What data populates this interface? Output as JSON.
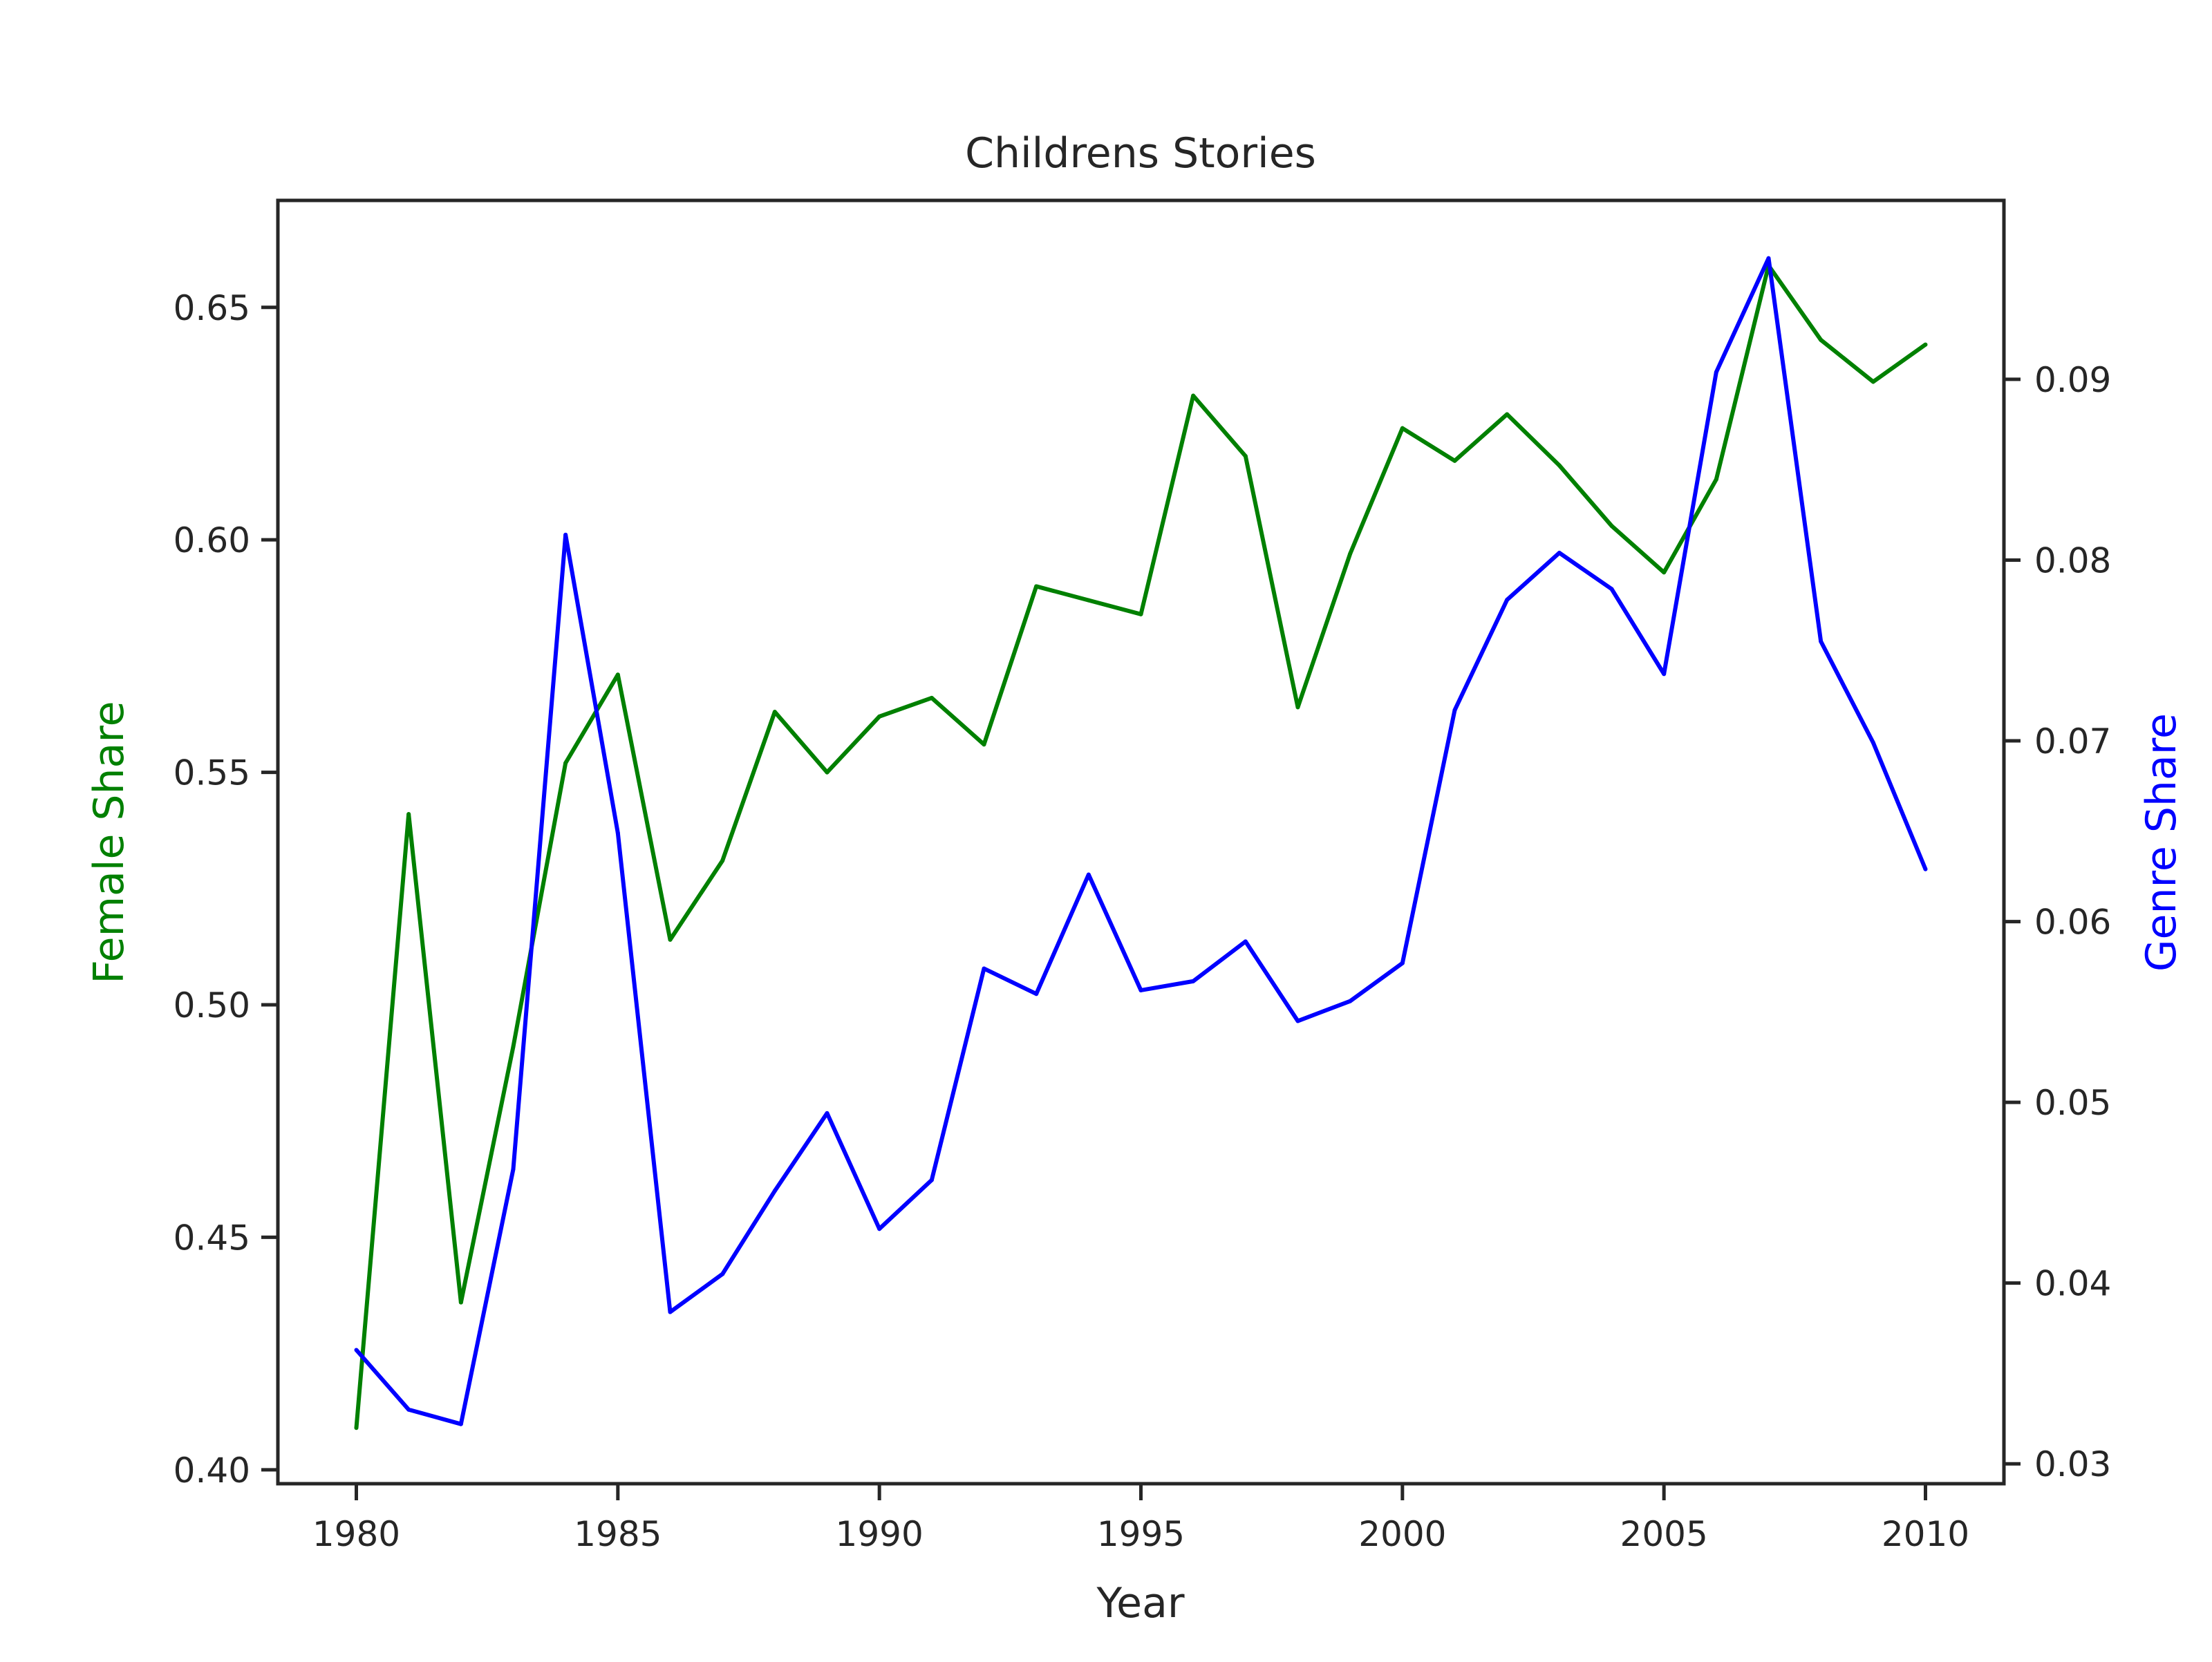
{
  "chart_data": {
    "type": "line",
    "title": "Childrens Stories",
    "xlabel": "Year",
    "ylabel_left": "Female Share",
    "ylabel_right": "Genre Share",
    "x": [
      1980,
      1981,
      1982,
      1983,
      1984,
      1985,
      1986,
      1987,
      1988,
      1989,
      1990,
      1991,
      1992,
      1993,
      1994,
      1995,
      1996,
      1997,
      1998,
      1999,
      2000,
      2001,
      2002,
      2003,
      2004,
      2005,
      2006,
      2007,
      2008,
      2009,
      2010
    ],
    "xlim": [
      1978.5,
      2011.5
    ],
    "xticks": [
      "1980",
      "1985",
      "1990",
      "1995",
      "2000",
      "2005",
      "2010"
    ],
    "left_axis": {
      "ylim": [
        0.397,
        0.673
      ],
      "ticks": [
        "0.40",
        "0.45",
        "0.50",
        "0.55",
        "0.60",
        "0.65"
      ],
      "color": "#008000"
    },
    "right_axis": {
      "ylim": [
        0.0289,
        0.0999
      ],
      "ticks": [
        "0.03",
        "0.04",
        "0.05",
        "0.06",
        "0.07",
        "0.08",
        "0.09"
      ],
      "color": "#0000ff"
    },
    "series": [
      {
        "name": "Female Share",
        "axis": "left",
        "color": "#008000",
        "values": [
          0.409,
          0.541,
          0.436,
          0.491,
          0.552,
          0.571,
          0.514,
          0.531,
          0.563,
          0.55,
          0.562,
          0.566,
          0.556,
          0.59,
          0.587,
          0.584,
          0.631,
          0.618,
          0.564,
          0.597,
          0.624,
          0.617,
          0.627,
          0.616,
          0.603,
          0.593,
          0.613,
          0.659,
          0.643,
          0.634,
          0.642
        ]
      },
      {
        "name": "Genre Share",
        "axis": "right",
        "color": "#0000ff",
        "values": [
          0.0363,
          0.033,
          0.0322,
          0.0463,
          0.0814,
          0.0649,
          0.0384,
          0.0405,
          0.0451,
          0.0494,
          0.043,
          0.0457,
          0.0574,
          0.056,
          0.0626,
          0.0562,
          0.0567,
          0.0589,
          0.0545,
          0.0556,
          0.0577,
          0.0717,
          0.0778,
          0.0804,
          0.0784,
          0.0737,
          0.0904,
          0.0967,
          0.0755,
          0.0699,
          0.0629
        ]
      }
    ]
  }
}
